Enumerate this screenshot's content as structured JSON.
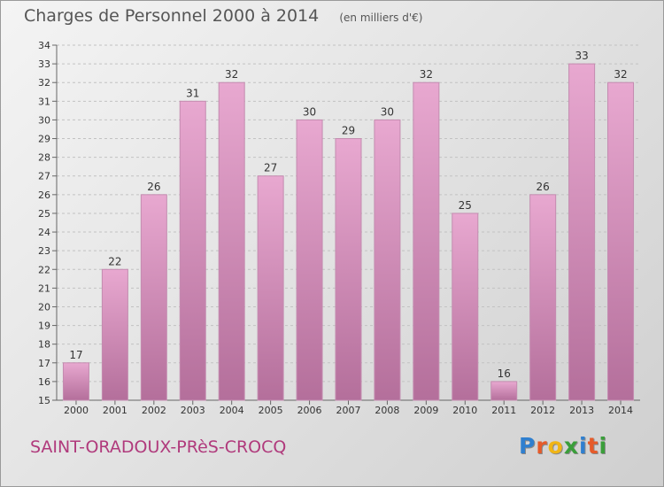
{
  "header": {
    "title": "Charges de Personnel 2000 à 2014",
    "subtitle": "(en milliers d'€)"
  },
  "footer": {
    "commune": "SAINT-ORADOUX-PRèS-CROCQ",
    "logo_text": "Proxiti",
    "logo_colors": [
      "#2f7fcf",
      "#e65b2a",
      "#f0b516",
      "#3a9e3a",
      "#2f7fcf",
      "#e65b2a",
      "#3a9e3a"
    ]
  },
  "colors": {
    "bar_light": "#e8a8d0",
    "bar_dark": "#b46f9b",
    "bar_stroke": "#c48cb0"
  },
  "chart_data": {
    "type": "bar",
    "title": "Charges de Personnel 2000 à 2014",
    "subtitle": "(en milliers d'€)",
    "categories": [
      "2000",
      "2001",
      "2002",
      "2003",
      "2004",
      "2005",
      "2006",
      "2007",
      "2008",
      "2009",
      "2010",
      "2011",
      "2012",
      "2013",
      "2014"
    ],
    "values": [
      17,
      22,
      26,
      31,
      32,
      27,
      30,
      29,
      30,
      32,
      25,
      16,
      26,
      33,
      32
    ],
    "ylim": [
      15,
      34
    ],
    "yticks": [
      "15",
      "16",
      "17",
      "18",
      "19",
      "20",
      "21",
      "22",
      "23",
      "24",
      "25",
      "26",
      "27",
      "28",
      "29",
      "30",
      "31",
      "32",
      "33",
      "34"
    ],
    "grid": true,
    "data_labels": true
  }
}
